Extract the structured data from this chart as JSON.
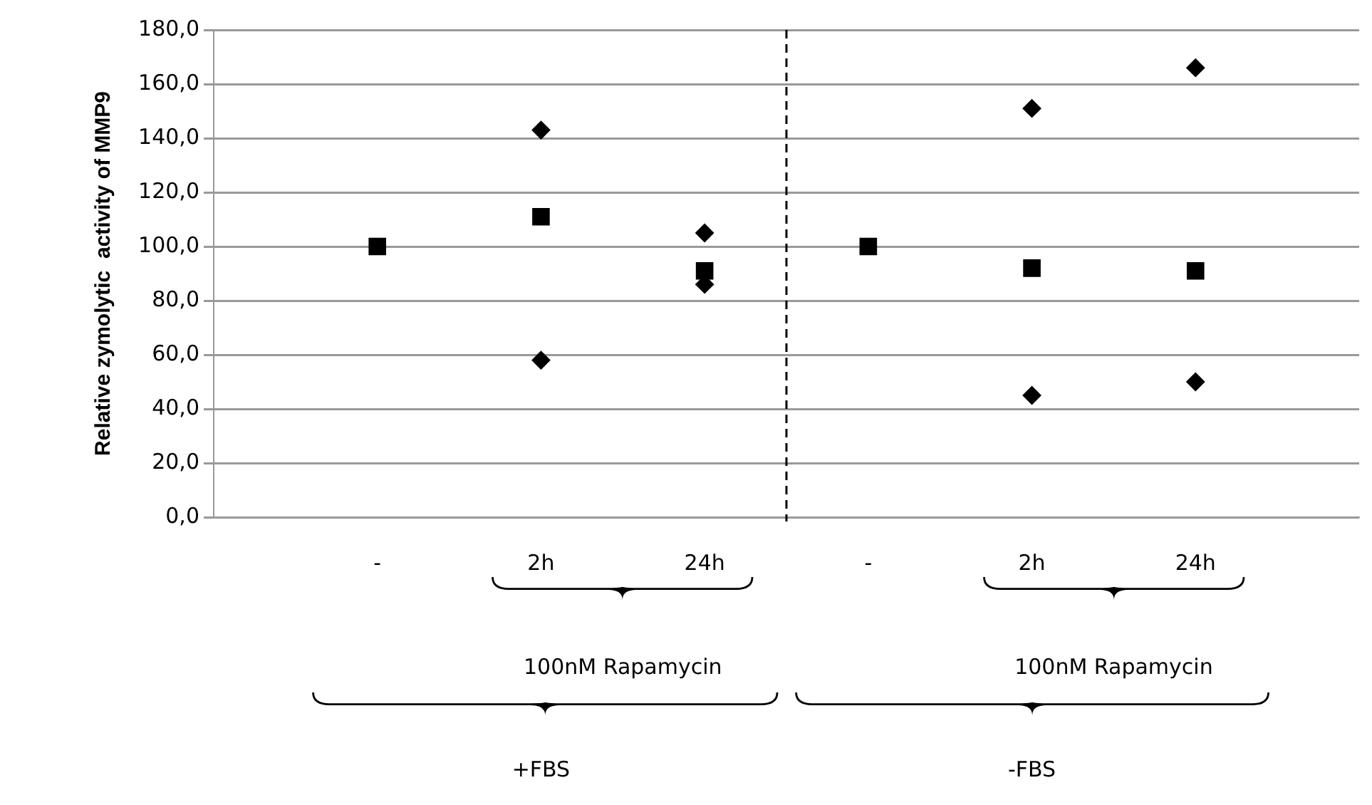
{
  "chart_data": {
    "type": "scatter",
    "ylabel": "Relative zymolytic  activity of MMP9",
    "categories": [
      "-",
      "2h",
      "24h",
      "-",
      "2h",
      "24h"
    ],
    "ylim": [
      0,
      180
    ],
    "yticks": [
      {
        "value": 0,
        "label": "0,0"
      },
      {
        "value": 20,
        "label": "20,0"
      },
      {
        "value": 40,
        "label": "40,0"
      },
      {
        "value": 60,
        "label": "60,0"
      },
      {
        "value": 80,
        "label": "80,0"
      },
      {
        "value": 100,
        "label": "100,0"
      },
      {
        "value": 120,
        "label": "120,0"
      },
      {
        "value": 140,
        "label": "140,0"
      },
      {
        "value": 160,
        "label": "160,0"
      },
      {
        "value": 180,
        "label": "180,0"
      }
    ],
    "grid": "y",
    "legend": false,
    "series": [
      {
        "marker": "square",
        "color": "#000000",
        "values": [
          100,
          111,
          91,
          100,
          92,
          91
        ]
      },
      {
        "marker": "diamond",
        "color": "#000000",
        "values": [
          null,
          143,
          105,
          null,
          151,
          166
        ]
      },
      {
        "marker": "diamond",
        "color": "#000000",
        "values": [
          null,
          58,
          86,
          null,
          45,
          50
        ]
      }
    ],
    "annotations": [
      "100nM Rapamycin",
      "100nM Rapamycin",
      "+FBS",
      "-FBS"
    ]
  }
}
